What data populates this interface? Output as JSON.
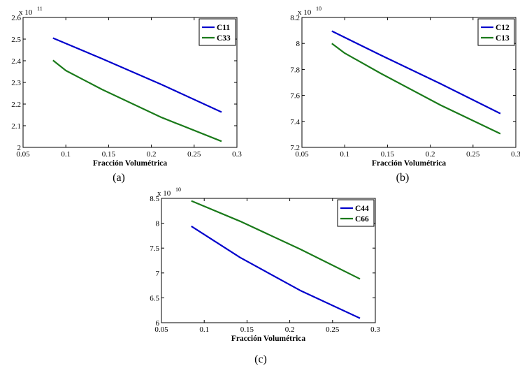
{
  "colors": {
    "blue": "#0000cc",
    "green": "#1a7a1a"
  },
  "chart_data": [
    {
      "type": "line",
      "caption": "(a)",
      "xlabel": "Fracción Volumétrica",
      "ylabel": "",
      "xlim": [
        0.05,
        0.3
      ],
      "ylim": [
        2.0,
        2.6
      ],
      "y_multiplier": {
        "base": "x 10",
        "exp": "11"
      },
      "xticks": [
        0.05,
        0.1,
        0.15,
        0.2,
        0.25,
        0.3
      ],
      "xtick_labels": [
        "0.05",
        "0.1",
        "0.15",
        "0.2",
        "0.25",
        "0.3"
      ],
      "yticks": [
        2.0,
        2.1,
        2.2,
        2.3,
        2.4,
        2.5,
        2.6
      ],
      "ytick_labels": [
        "2",
        "2.1",
        "2.2",
        "2.3",
        "2.4",
        "2.5",
        "2.6"
      ],
      "grid": false,
      "legend_position": "top-right",
      "series": [
        {
          "name": "C11",
          "color": "#0000cc",
          "x": [
            0.085,
            0.142,
            0.212,
            0.282
          ],
          "y": [
            2.505,
            2.41,
            2.29,
            2.163
          ]
        },
        {
          "name": "C33",
          "color": "#1a7a1a",
          "x": [
            0.085,
            0.1,
            0.142,
            0.212,
            0.282
          ],
          "y": [
            2.402,
            2.355,
            2.268,
            2.138,
            2.028
          ]
        }
      ]
    },
    {
      "type": "line",
      "caption": "(b)",
      "xlabel": "Fracción Volumétrica",
      "ylabel": "",
      "xlim": [
        0.05,
        0.3
      ],
      "ylim": [
        7.2,
        8.2
      ],
      "y_multiplier": {
        "base": "x 10",
        "exp": "10"
      },
      "xticks": [
        0.05,
        0.1,
        0.15,
        0.2,
        0.25,
        0.3
      ],
      "xtick_labels": [
        "0.05",
        "0.1",
        "0.15",
        "0.2",
        "0.25",
        "0.3"
      ],
      "yticks": [
        7.2,
        7.4,
        7.6,
        7.8,
        8.0,
        8.2
      ],
      "ytick_labels": [
        "7.2",
        "7.4",
        "7.6",
        "7.8",
        "8",
        "8.2"
      ],
      "grid": false,
      "legend_position": "top-right",
      "series": [
        {
          "name": "C12",
          "color": "#0000cc",
          "x": [
            0.085,
            0.142,
            0.212,
            0.282
          ],
          "y": [
            8.095,
            7.91,
            7.69,
            7.46
          ]
        },
        {
          "name": "C13",
          "color": "#1a7a1a",
          "x": [
            0.085,
            0.1,
            0.142,
            0.212,
            0.282
          ],
          "y": [
            8.0,
            7.925,
            7.77,
            7.525,
            7.305
          ]
        }
      ]
    },
    {
      "type": "line",
      "caption": "(c)",
      "xlabel": "Fracción Volumétrica",
      "ylabel": "",
      "xlim": [
        0.05,
        0.3
      ],
      "ylim": [
        6.0,
        8.5
      ],
      "y_multiplier": {
        "base": "x 10",
        "exp": "10"
      },
      "xticks": [
        0.05,
        0.1,
        0.15,
        0.2,
        0.25,
        0.3
      ],
      "xtick_labels": [
        "0.05",
        "0.1",
        "0.15",
        "0.2",
        "0.25",
        "0.3"
      ],
      "yticks": [
        6.0,
        6.5,
        7.0,
        7.5,
        8.0,
        8.5
      ],
      "ytick_labels": [
        "6",
        "6.5",
        "7",
        "7.5",
        "8",
        "8.5"
      ],
      "grid": false,
      "legend_position": "top-right",
      "series": [
        {
          "name": "C44",
          "color": "#0000cc",
          "x": [
            0.085,
            0.142,
            0.212,
            0.282
          ],
          "y": [
            7.94,
            7.31,
            6.65,
            6.09
          ]
        },
        {
          "name": "C66",
          "color": "#1a7a1a",
          "x": [
            0.085,
            0.142,
            0.212,
            0.282
          ],
          "y": [
            8.45,
            8.04,
            7.48,
            6.88
          ]
        }
      ]
    }
  ]
}
